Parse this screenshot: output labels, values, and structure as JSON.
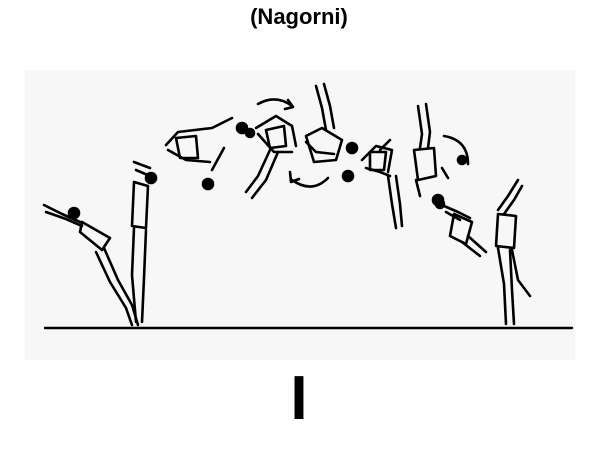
{
  "title": "(Nagorni)",
  "marker": "I",
  "colors": {
    "ink": "#000000",
    "panel": "#f7f7f7",
    "background": "#ffffff"
  }
}
